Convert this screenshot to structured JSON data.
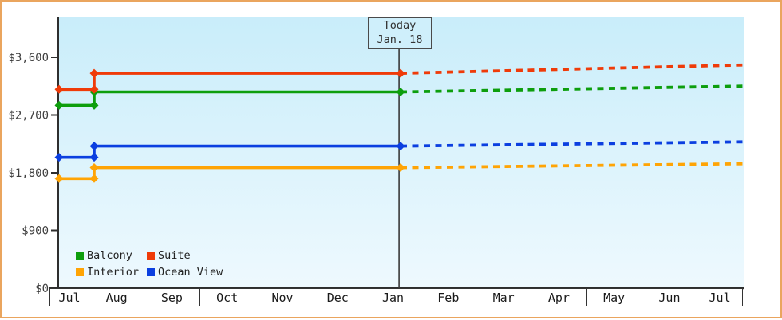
{
  "page": {
    "border_color": "#eaa55e",
    "background_color": "#ffffff",
    "plot_bg_top": "#c9edfa",
    "plot_bg_bottom": "#eef9fe",
    "axis_color": "#2e2e2e"
  },
  "chart_data": {
    "type": "line",
    "title": "",
    "xlabel": "",
    "ylabel": "",
    "grid": false,
    "legend_position": "bottom-left",
    "y_ticks": [
      0,
      900,
      1800,
      2700,
      3600
    ],
    "y_tick_labels": [
      "$0",
      "$900",
      "$1,800",
      "$2,700",
      "$3,600"
    ],
    "ylim": [
      0,
      4230
    ],
    "x_months": [
      "Jul",
      "Aug",
      "Sep",
      "Oct",
      "Nov",
      "Dec",
      "Jan",
      "Feb",
      "Mar",
      "Apr",
      "May",
      "Jun",
      "Jul"
    ],
    "today_marker": {
      "line1": "Today",
      "line2": "Jan. 18"
    },
    "series": [
      {
        "name": "Balcony",
        "color": "#0d9e0d",
        "history": [
          {
            "date": "Jul 18",
            "value": 2850
          },
          {
            "date": "Aug 1",
            "value": 2850
          },
          {
            "date": "Aug 1",
            "value": 3060
          },
          {
            "date": "Jan 18",
            "value": 3060
          }
        ],
        "forecast": [
          {
            "date": "Jan 18",
            "value": 3060
          },
          {
            "date": "Jul 18",
            "value": 3150
          }
        ]
      },
      {
        "name": "Suite",
        "color": "#ef3b09",
        "history": [
          {
            "date": "Jul 18",
            "value": 3100
          },
          {
            "date": "Aug 1",
            "value": 3100
          },
          {
            "date": "Aug 1",
            "value": 3350
          },
          {
            "date": "Jan 18",
            "value": 3350
          }
        ],
        "forecast": [
          {
            "date": "Jan 18",
            "value": 3350
          },
          {
            "date": "Jul 18",
            "value": 3480
          }
        ]
      },
      {
        "name": "Interior",
        "color": "#ffa405",
        "history": [
          {
            "date": "Jul 18",
            "value": 1710
          },
          {
            "date": "Aug 1",
            "value": 1710
          },
          {
            "date": "Aug 1",
            "value": 1880
          },
          {
            "date": "Jan 18",
            "value": 1880
          }
        ],
        "forecast": [
          {
            "date": "Jan 18",
            "value": 1880
          },
          {
            "date": "Jul 18",
            "value": 1940
          }
        ]
      },
      {
        "name": "Ocean View",
        "color": "#0b3fe0",
        "history": [
          {
            "date": "Jul 18",
            "value": 2040
          },
          {
            "date": "Aug 1",
            "value": 2040
          },
          {
            "date": "Aug 1",
            "value": 2215
          },
          {
            "date": "Jan 18",
            "value": 2215
          }
        ],
        "forecast": [
          {
            "date": "Jan 18",
            "value": 2215
          },
          {
            "date": "Jul 18",
            "value": 2280
          }
        ]
      }
    ]
  }
}
